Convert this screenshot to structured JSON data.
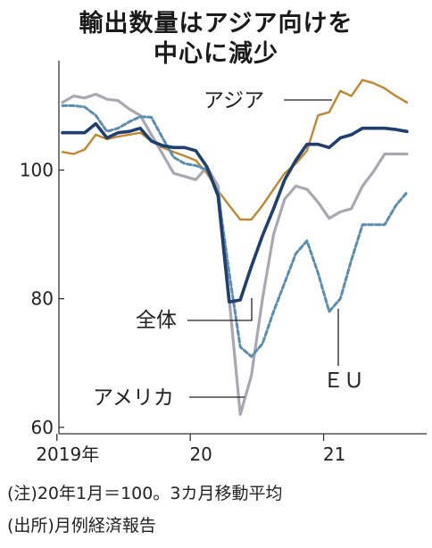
{
  "chart_data": {
    "type": "line",
    "title": "輸出数量はアジア向けを",
    "subtitle": "中心に減少",
    "x": [
      "2019-01",
      "2019-02",
      "2019-03",
      "2019-04",
      "2019-05",
      "2019-06",
      "2019-07",
      "2019-08",
      "2019-09",
      "2019-10",
      "2019-11",
      "2019-12",
      "2020-01",
      "2020-02",
      "2020-03",
      "2020-04",
      "2020-05",
      "2020-06",
      "2020-07",
      "2020-08",
      "2020-09",
      "2020-10",
      "2020-11",
      "2020-12",
      "2021-01",
      "2021-02",
      "2021-03",
      "2021-04",
      "2021-05",
      "2021-06",
      "2021-07",
      "2021-08"
    ],
    "xticks": [
      {
        "x": "2019-01",
        "label": "2019年"
      },
      {
        "x": "2020-01",
        "label": "20"
      },
      {
        "x": "2021-01",
        "label": "21"
      }
    ],
    "yticks": [
      60,
      80,
      100
    ],
    "ylim": [
      59,
      117
    ],
    "xlabel": "",
    "ylabel": "",
    "series": [
      {
        "name": "アジア",
        "color": "#c0872f",
        "dash": "none",
        "width": 2.4,
        "values": [
          102.8,
          102.5,
          103.2,
          105.5,
          104.8,
          105.2,
          105.5,
          105.8,
          104.5,
          103.5,
          102.8,
          102.2,
          101.5,
          99.5,
          96.8,
          94.5,
          92.3,
          92.3,
          94.5,
          97.0,
          99.5,
          101.0,
          103.0,
          108.5,
          109.0,
          112.3,
          111.5,
          114.0,
          113.5,
          112.7,
          111.5,
          110.5
        ]
      },
      {
        "name": "",
        "color": "#a8a8b2",
        "dash": "none",
        "width": 3.2,
        "values": [
          110.5,
          111.5,
          111.2,
          111.8,
          111.0,
          110.8,
          109.5,
          108.5,
          105.5,
          102.5,
          99.5,
          99.0,
          98.5,
          100.5,
          97.5,
          80.0,
          62.0,
          68.0,
          80.0,
          90.0,
          95.5,
          97.5,
          97.0,
          95.0,
          92.5,
          93.5,
          94.0,
          97.5,
          99.8,
          102.5,
          102.5,
          102.5
        ]
      },
      {
        "name": "EU",
        "color": "#5b8db1",
        "dash": "5 3",
        "width": 3.0,
        "values": [
          110.0,
          110.0,
          109.8,
          108.5,
          106.0,
          106.5,
          107.5,
          108.3,
          108.2,
          105.0,
          102.0,
          101.0,
          100.7,
          100.0,
          96.5,
          84.0,
          72.5,
          71.0,
          73.0,
          78.0,
          82.5,
          87.0,
          89.0,
          84.0,
          78.0,
          80.0,
          86.0,
          91.5,
          91.5,
          91.5,
          94.5,
          96.5
        ]
      },
      {
        "name": "全体",
        "color": "#1f3f6e",
        "dash": "none",
        "width": 3.6,
        "values": [
          105.8,
          105.8,
          105.8,
          107.2,
          105.0,
          105.8,
          106.0,
          106.5,
          104.5,
          103.8,
          103.5,
          103.5,
          103.0,
          100.5,
          96.0,
          79.5,
          79.8,
          85.0,
          89.8,
          94.0,
          98.5,
          101.5,
          104.0,
          104.0,
          103.5,
          105.0,
          105.5,
          106.5,
          106.5,
          106.5,
          106.3,
          106.0
        ]
      }
    ],
    "annotations": [
      "アジア",
      "全体",
      "アメリカ",
      "ＥＵ"
    ],
    "grid": false,
    "legend": "none"
  },
  "notes": {
    "note": "(注)20年1月＝100。3カ月移動平均",
    "source": "(出所)月例経済報告"
  }
}
